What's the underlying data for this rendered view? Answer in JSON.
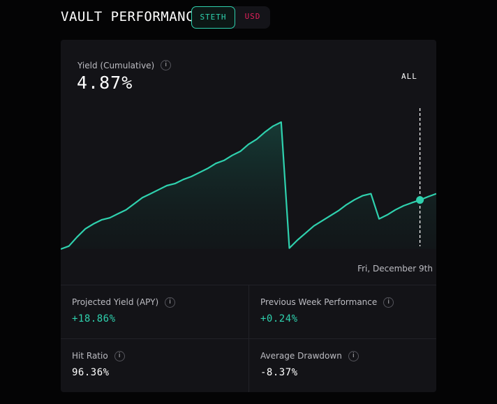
{
  "header": {
    "title": "VAULT PERFORMANCE"
  },
  "toggle": {
    "options": [
      "STETH",
      "USD"
    ],
    "selected": "STETH"
  },
  "yield": {
    "label": "Yield (Cumulative)",
    "value": "4.87%",
    "range": "ALL",
    "hover_date": "Fri, December 9th"
  },
  "stats": [
    {
      "label": "Projected Yield (APY)",
      "value": "+18.86%"
    },
    {
      "label": "Previous Week Performance",
      "value": "+0.24%"
    },
    {
      "label": "Hit Ratio",
      "value": "96.36%"
    },
    {
      "label": "Average Drawdown",
      "value": "-8.37%"
    }
  ],
  "info_glyph": "i",
  "colors": {
    "accent": "#2fd1ae",
    "negative": "#e0205a",
    "card": "#131317",
    "background": "#040405"
  },
  "chart_data": {
    "type": "area",
    "series": [
      {
        "values": [
          0.0,
          0.3,
          1.2,
          2.0,
          2.5,
          2.9,
          3.1,
          3.5,
          3.9,
          4.5,
          5.1,
          5.5,
          5.9,
          6.3,
          6.5,
          6.9,
          7.2,
          7.6,
          8.0,
          8.5,
          8.8,
          9.3,
          9.7,
          10.4,
          10.9,
          11.6,
          12.2,
          12.6,
          0.1,
          0.9,
          1.6,
          2.3,
          2.8,
          3.3,
          3.8,
          4.4,
          4.9,
          5.3,
          5.5,
          3.0,
          3.4,
          3.9,
          4.3,
          4.6,
          4.87,
          5.2,
          5.5
        ]
      }
    ],
    "hover_value": 4.87,
    "hover_date": "Fri, December 9th",
    "unit": "%"
  }
}
